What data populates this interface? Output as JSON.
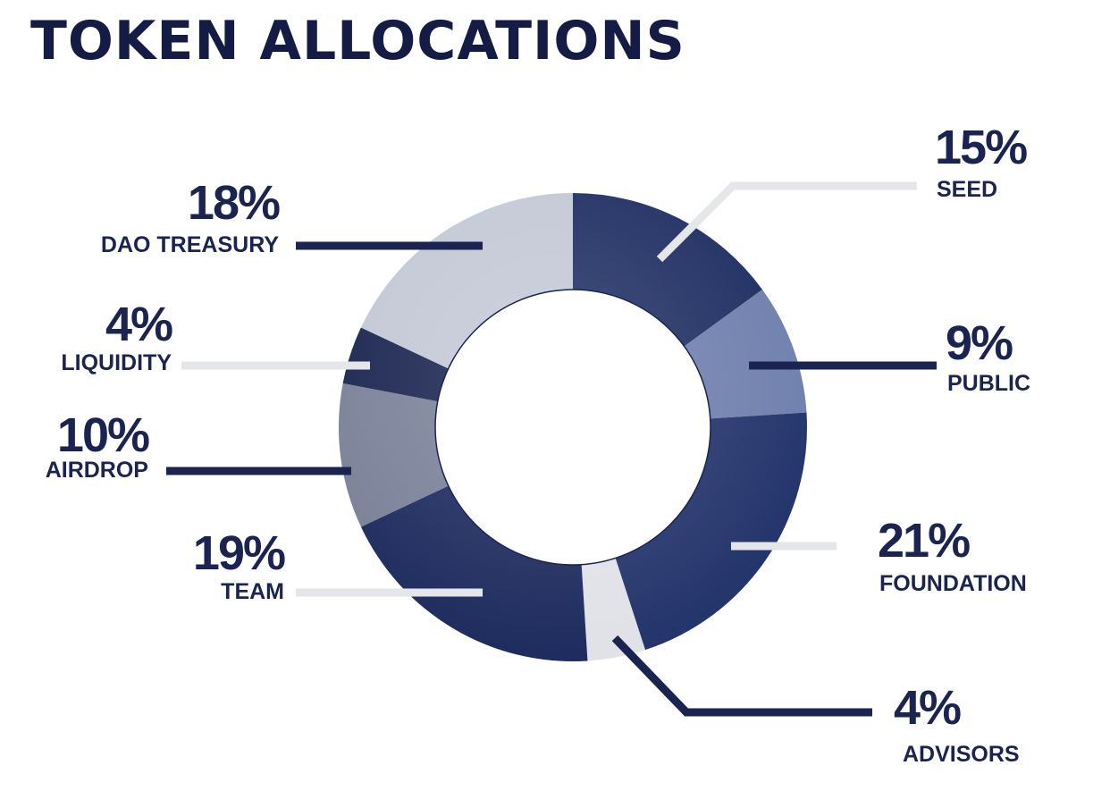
{
  "chart_data": {
    "type": "pie",
    "title": "TOKEN ALLOCATIONS",
    "categories": [
      "SEED",
      "PUBLIC",
      "FOUNDATION",
      "ADVISORS",
      "TEAM",
      "AIRDROP",
      "LIQUIDITY",
      "DAO TREASURY"
    ],
    "values": [
      15,
      9,
      21,
      4,
      19,
      10,
      4,
      18
    ],
    "labels": [
      "15%",
      "9%",
      "21%",
      "4%",
      "19%",
      "10%",
      "4%",
      "18%"
    ],
    "colors": [
      "#1f2f63",
      "#6f80ad",
      "#24356c",
      "#e0e2e8",
      "#1d2b5e",
      "#7a8198",
      "#1a2550",
      "#c3c8d6"
    ],
    "donut": true
  }
}
